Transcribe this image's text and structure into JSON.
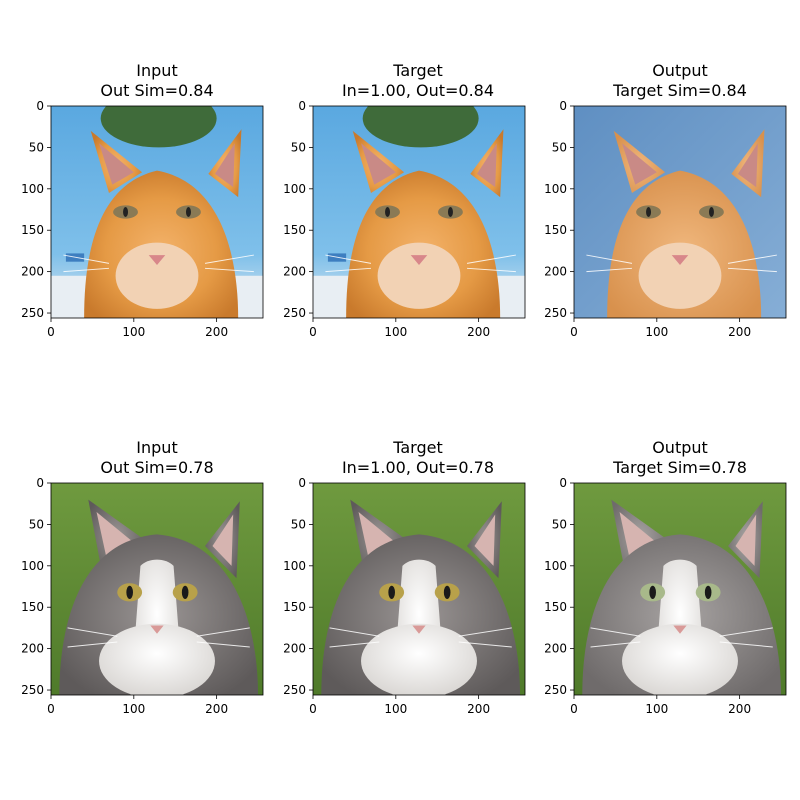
{
  "figure": {
    "x_ticks": [
      "0",
      "100",
      "200"
    ],
    "y_ticks": [
      "0",
      "50",
      "100",
      "150",
      "200",
      "250"
    ],
    "x_tick_values": [
      0,
      100,
      200
    ],
    "y_tick_values": [
      0,
      50,
      100,
      150,
      200,
      250
    ],
    "image_extent": 256,
    "rows": [
      {
        "subject": "orange tabby cat",
        "panels": [
          {
            "title_line1": "Input",
            "title_line2": "Out Sim=0.84",
            "style": "orange-photo"
          },
          {
            "title_line1": "Target",
            "title_line2": "In=1.00, Out=0.84",
            "style": "orange-photo"
          },
          {
            "title_line1": "Output",
            "title_line2": "Target Sim=0.84",
            "style": "orange-painted"
          }
        ]
      },
      {
        "subject": "grey and white long-haired cat",
        "panels": [
          {
            "title_line1": "Input",
            "title_line2": "Out Sim=0.78",
            "style": "grey-photo"
          },
          {
            "title_line1": "Target",
            "title_line2": "In=1.00, Out=0.78",
            "style": "grey-photo"
          },
          {
            "title_line1": "Output",
            "title_line2": "Target Sim=0.78",
            "style": "grey-painted"
          }
        ]
      }
    ]
  }
}
